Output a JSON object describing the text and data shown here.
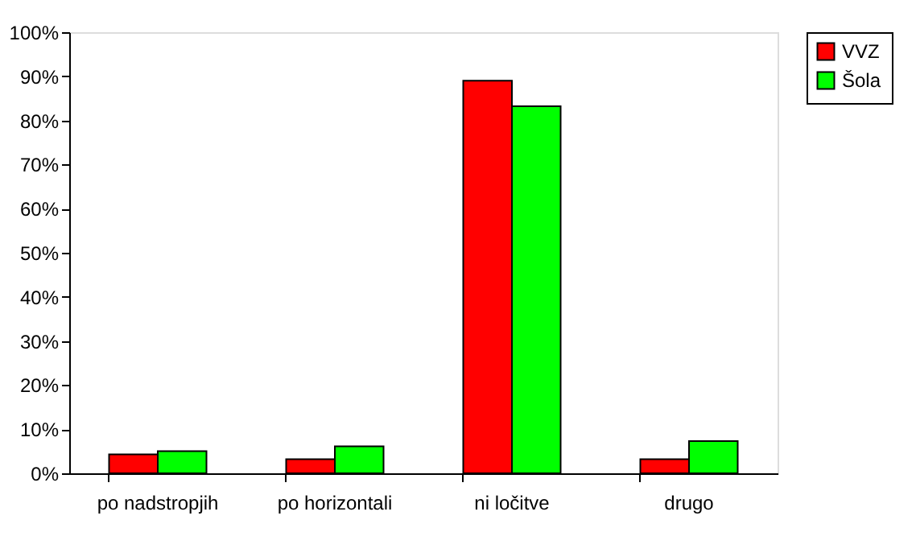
{
  "chart_data": {
    "type": "bar",
    "categories": [
      "po nadstropjih",
      "po horizontali",
      "ni ločitve",
      "drugo"
    ],
    "series": [
      {
        "name": "VVZ",
        "color": "#ff0000",
        "values": [
          4.3,
          3.2,
          89.0,
          3.2
        ]
      },
      {
        "name": "Šola",
        "color": "#00ff00",
        "values": [
          5.0,
          6.1,
          83.2,
          7.3
        ]
      }
    ],
    "ylim": [
      0,
      100
    ],
    "yticks": [
      {
        "value": 0,
        "label": "0%"
      },
      {
        "value": 10,
        "label": "10%"
      },
      {
        "value": 20,
        "label": "20%"
      },
      {
        "value": 30,
        "label": "30%"
      },
      {
        "value": 40,
        "label": "40%"
      },
      {
        "value": 50,
        "label": "50%"
      },
      {
        "value": 60,
        "label": "60%"
      },
      {
        "value": 70,
        "label": "70%"
      },
      {
        "value": 80,
        "label": "80%"
      },
      {
        "value": 90,
        "label": "90%"
      },
      {
        "value": 100,
        "label": "100%"
      }
    ],
    "grid": false,
    "legend": "right"
  }
}
